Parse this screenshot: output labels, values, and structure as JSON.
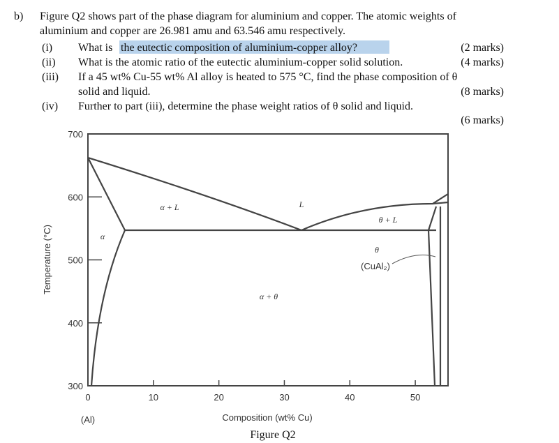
{
  "question": {
    "label": "b)",
    "intro_lines": [
      "Figure Q2 shows part of the phase diagram for aluminium and copper. The atomic weights of",
      "aluminium and copper are 26.981 amu and 63.546 amu respectively."
    ],
    "items": [
      {
        "num": "(i)",
        "text": "What is",
        "highlight": "the eutectic composition of aluminium-copper alloy?",
        "marks": "(2 marks)"
      },
      {
        "num": "(ii)",
        "lines": [
          "What is the atomic ratio of the eutectic aluminium-copper solid solution."
        ],
        "marks": "(4 marks)"
      },
      {
        "num": "(iii)",
        "lines": [
          "If a 45 wt% Cu-55 wt% Al alloy is heated to 575 °C, find the phase composition of θ",
          "solid and liquid."
        ],
        "marks": "(8 marks)"
      },
      {
        "num": "(iv)",
        "lines": [
          "Further to part (iii), determine the phase weight ratios of θ solid and liquid."
        ],
        "marks": "(6 marks)"
      }
    ]
  },
  "figure": {
    "caption": "Figure Q2",
    "x_label": "Composition (wt% Cu)",
    "y_label": "Temperature (°C)",
    "x_left_label": "(Al)",
    "xlim": [
      0,
      55
    ],
    "ylim": [
      300,
      700
    ],
    "xticks": [
      0,
      10,
      20,
      30,
      40,
      50
    ],
    "yticks": [
      300,
      400,
      500,
      600,
      700
    ],
    "region_labels": [
      "α + L",
      "L",
      "θ + L",
      "α",
      "θ",
      "(CuAl₂)",
      "α + θ"
    ]
  }
}
